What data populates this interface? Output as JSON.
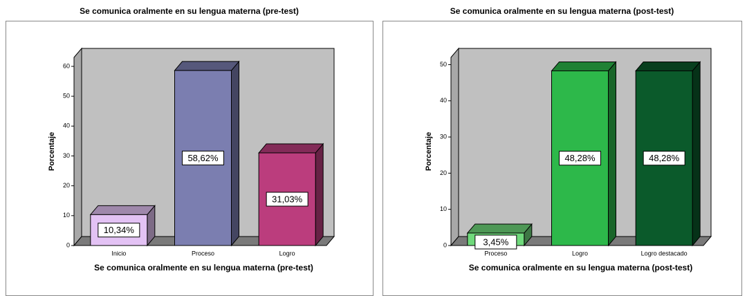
{
  "chart_data": [
    {
      "type": "bar3d",
      "title": "Se comunica oralmente en su lengua materna (pre-test)",
      "xlabel": "Se comunica oralmente en su lengua materna (pre-test)",
      "ylabel": "Porcentaje",
      "categories": [
        "Inicio",
        "Proceso",
        "Logro"
      ],
      "values": [
        10.34,
        58.62,
        31.03
      ],
      "value_labels": [
        "10,34%",
        "58,62%",
        "31,03%"
      ],
      "colors": [
        "#e3c2f4",
        "#7b7eb0",
        "#bb3d7d"
      ],
      "ylim": [
        0,
        63
      ],
      "yticks": [
        0,
        10,
        20,
        30,
        40,
        50,
        60
      ]
    },
    {
      "type": "bar3d",
      "title": "Se comunica oralmente en su lengua materna (post-test)",
      "xlabel": "Se comunica oralmente en su lengua materna (post-test)",
      "ylabel": "Porcentaje",
      "categories": [
        "Proceso",
        "Logro",
        "Logro destacado"
      ],
      "values": [
        3.45,
        48.28,
        48.28
      ],
      "value_labels": [
        "3,45%",
        "48,28%",
        "48,28%"
      ],
      "colors": [
        "#6fd97b",
        "#2db84a",
        "#0b5a2b"
      ],
      "ylim": [
        0,
        52
      ],
      "yticks": [
        0,
        10,
        20,
        30,
        40,
        50
      ]
    }
  ]
}
